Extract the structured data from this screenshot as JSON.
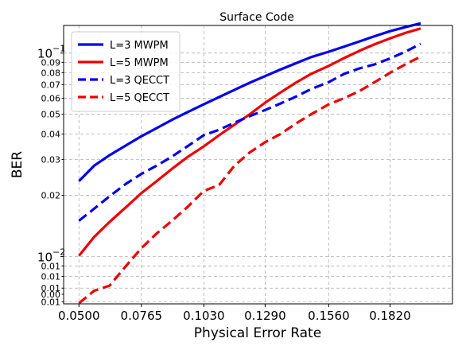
{
  "chart_data": {
    "type": "line",
    "title": "Surface Code",
    "xlabel": "Physical Error Rate",
    "ylabel": "BER",
    "xscale": "linear",
    "yscale": "log",
    "xlim": [
      0.0435,
      0.2085
    ],
    "ylim": [
      0.00586,
      0.1366
    ],
    "grid": true,
    "grid_style": "dashed",
    "legend_position": "upper left",
    "x_ticks": [
      0.05,
      0.0765,
      0.103,
      0.129,
      0.156,
      0.182
    ],
    "x_tick_labels": [
      "0.0500",
      "0.0765",
      "0.1030",
      "0.1290",
      "0.1560",
      "0.1820"
    ],
    "y_tick_labels": [
      {
        "y": 0.1,
        "text": "10",
        "exp": "−1",
        "major": true
      },
      {
        "y": 0.09,
        "text": "0.09"
      },
      {
        "y": 0.08,
        "text": "0.08"
      },
      {
        "y": 0.07,
        "text": "0.07"
      },
      {
        "y": 0.06,
        "text": "0.06"
      },
      {
        "y": 0.05,
        "text": "0.05"
      },
      {
        "y": 0.04,
        "text": "0.04"
      },
      {
        "y": 0.03,
        "text": "0.03"
      },
      {
        "y": 0.02,
        "text": "0.02"
      },
      {
        "y": 0.01,
        "text": "10",
        "exp": "−2",
        "major": true
      },
      {
        "y": 0.009,
        "text": "0.01"
      },
      {
        "y": 0.008,
        "text": "0.01"
      },
      {
        "y": 0.007,
        "text": "0.01"
      },
      {
        "y": 0.006,
        "text": "0.01"
      }
    ],
    "y_bottom_label": "0.00",
    "x": [
      0.05,
      0.0565,
      0.063,
      0.07,
      0.0765,
      0.083,
      0.0895,
      0.096,
      0.103,
      0.1095,
      0.116,
      0.1225,
      0.129,
      0.1355,
      0.142,
      0.1485,
      0.156,
      0.1625,
      0.169,
      0.1755,
      0.182,
      0.1885,
      0.195
    ],
    "series": [
      {
        "name": "L=3 MWPM",
        "color": "#0000ee",
        "dash": "solid",
        "values": [
          0.0235,
          0.028,
          0.0315,
          0.0352,
          0.039,
          0.0428,
          0.047,
          0.0512,
          0.056,
          0.0608,
          0.066,
          0.0715,
          0.077,
          0.083,
          0.089,
          0.0955,
          0.1015,
          0.1075,
          0.114,
          0.121,
          0.128,
          0.134,
          0.14
        ]
      },
      {
        "name": "L=5 MWPM",
        "color": "#ee0000",
        "dash": "solid",
        "values": [
          0.0101,
          0.0125,
          0.0148,
          0.0175,
          0.0205,
          0.0235,
          0.027,
          0.0308,
          0.0348,
          0.0395,
          0.0445,
          0.05,
          0.057,
          0.064,
          0.0715,
          0.079,
          0.0865,
          0.0945,
          0.1025,
          0.1105,
          0.118,
          0.1255,
          0.132
        ]
      },
      {
        "name": "L=3 QECCT",
        "color": "#0000ee",
        "dash": "dashed",
        "values": [
          0.015,
          0.0172,
          0.0198,
          0.0228,
          0.0255,
          0.028,
          0.031,
          0.0348,
          0.0395,
          0.042,
          0.0455,
          0.049,
          0.0525,
          0.0565,
          0.061,
          0.0665,
          0.072,
          0.079,
          0.084,
          0.088,
          0.094,
          0.1015,
          0.111
        ]
      },
      {
        "name": "L=5 QECCT",
        "color": "#ee0000",
        "dash": "dashed",
        "values": [
          0.0059,
          0.0068,
          0.0072,
          0.009,
          0.011,
          0.013,
          0.015,
          0.0175,
          0.021,
          0.0225,
          0.028,
          0.0325,
          0.0365,
          0.04,
          0.045,
          0.05,
          0.056,
          0.06,
          0.065,
          0.072,
          0.08,
          0.088,
          0.096
        ]
      }
    ]
  }
}
